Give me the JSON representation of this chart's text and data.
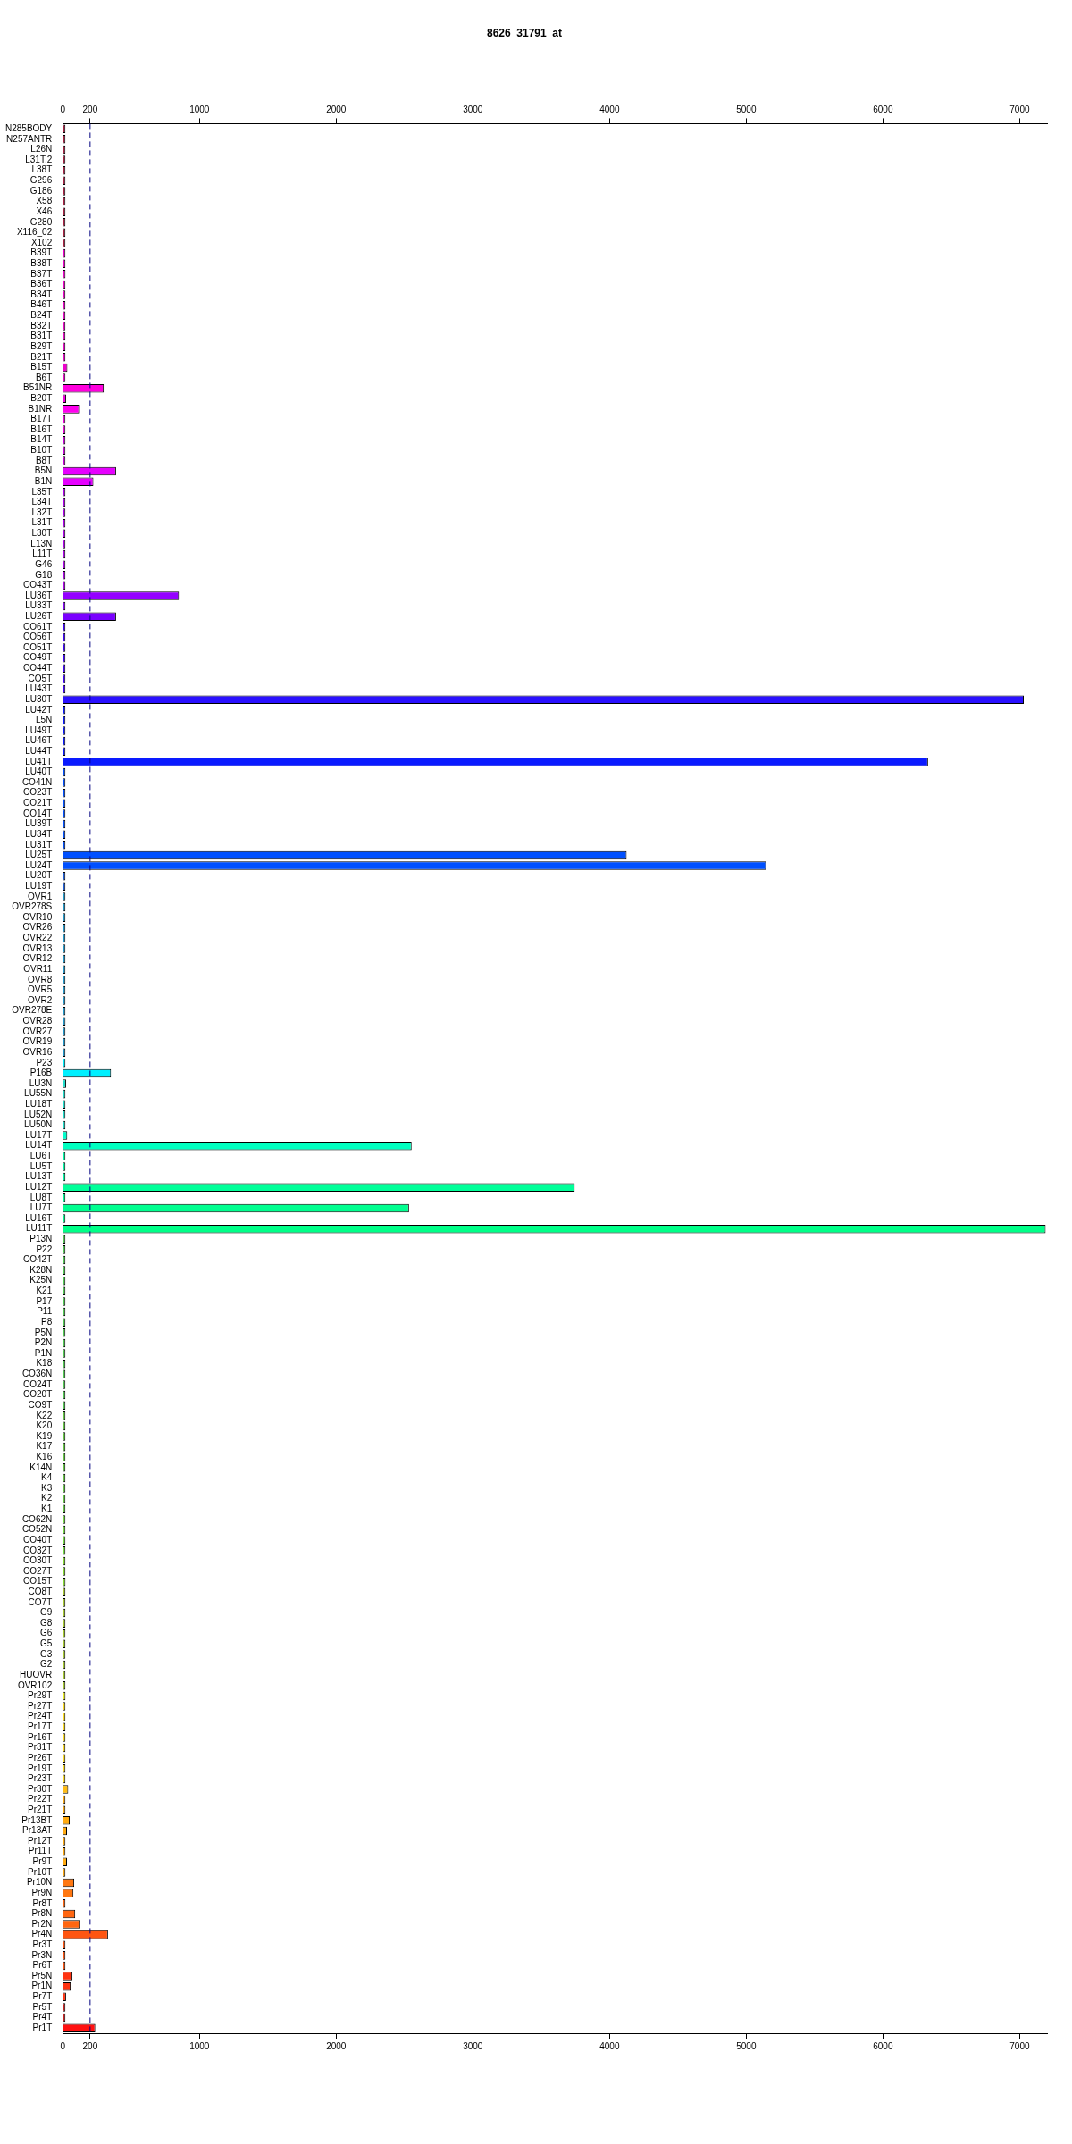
{
  "chart_data": {
    "type": "bar",
    "orientation": "horizontal",
    "title": "8626_31791_at",
    "categories": [
      "N285BODY",
      "N257ANTR",
      "L26N",
      "L31T.2",
      "L38T",
      "G296",
      "G186",
      "X58",
      "X46",
      "G280",
      "X116_02",
      "X102",
      "B39T",
      "B38T",
      "B37T",
      "B36T",
      "B34T",
      "B46T",
      "B24T",
      "B32T",
      "B31T",
      "B29T",
      "B21T",
      "B15T",
      "B6T",
      "B51NR",
      "B20T",
      "B1NR",
      "B17T",
      "B16T",
      "B14T",
      "B10T",
      "B8T",
      "B5N",
      "B1N",
      "L35T",
      "L34T",
      "L32T",
      "L31T",
      "L30T",
      "L13N",
      "L11T",
      "G46",
      "G18",
      "CO43T",
      "LU36T",
      "LU33T",
      "LU26T",
      "CO61T",
      "CO56T",
      "CO51T",
      "CO49T",
      "CO44T",
      "CO5T",
      "LU43T",
      "LU30T",
      "LU42T",
      "L5N",
      "LU49T",
      "LU46T",
      "LU44T",
      "LU41T",
      "LU40T",
      "CO41N",
      "CO23T",
      "CO21T",
      "CO14T",
      "LU39T",
      "LU34T",
      "LU31T",
      "LU25T",
      "LU24T",
      "LU20T",
      "LU19T",
      "OVR1",
      "OVR278S",
      "OVR10",
      "OVR26",
      "OVR22",
      "OVR13",
      "OVR12",
      "OVR11",
      "OVR8",
      "OVR5",
      "OVR2",
      "OVR278E",
      "OVR28",
      "OVR27",
      "OVR19",
      "OVR16",
      "P23",
      "P16B",
      "LU3N",
      "LU55N",
      "LU18T",
      "LU52N",
      "LU50N",
      "LU17T",
      "LU14T",
      "LU6T",
      "LU5T",
      "LU13T",
      "LU12T",
      "LU8T",
      "LU7T",
      "LU16T",
      "LU11T",
      "P13N",
      "P22",
      "CO42T",
      "K28N",
      "K25N",
      "K21",
      "P17",
      "P11",
      "P8",
      "P5N",
      "P2N",
      "P1N",
      "K18",
      "CO36N",
      "CO24T",
      "CO20T",
      "CO9T",
      "K22",
      "K20",
      "K19",
      "K17",
      "K16",
      "K14N",
      "K4",
      "K3",
      "K2",
      "K1",
      "CO62N",
      "CO52N",
      "CO40T",
      "CO32T",
      "CO30T",
      "CO27T",
      "CO15T",
      "CO8T",
      "CO7T",
      "G9",
      "G8",
      "G6",
      "G5",
      "G3",
      "G2",
      "HUOVR",
      "OVR102",
      "Pr29T",
      "Pr27T",
      "Pr24T",
      "Pr17T",
      "Pr16T",
      "Pr31T",
      "Pr26T",
      "Pr19T",
      "Pr23T",
      "Pr30T",
      "Pr22T",
      "Pr21T",
      "Pr13BT",
      "Pr13AT",
      "Pr12T",
      "Pr11T",
      "Pr9T",
      "Pr10T",
      "Pr10N",
      "Pr9N",
      "Pr8T",
      "Pr8N",
      "Pr2N",
      "Pr4N",
      "Pr3T",
      "Pr3N",
      "Pr6T",
      "Pr5N",
      "Pr1N",
      "Pr7T",
      "Pr5T",
      "Pr4T",
      "Pr1T"
    ],
    "values": [
      5,
      13,
      13,
      5,
      13,
      5,
      5,
      5,
      5,
      5,
      5,
      13,
      5,
      13,
      20,
      5,
      5,
      5,
      5,
      13,
      13,
      5,
      13,
      34,
      13,
      300,
      25,
      120,
      5,
      5,
      13,
      13,
      5,
      390,
      224,
      18,
      13,
      13,
      13,
      13,
      5,
      13,
      5,
      5,
      5,
      850,
      13,
      390,
      5,
      5,
      5,
      5,
      5,
      13,
      13,
      7030,
      5,
      5,
      5,
      5,
      5,
      6330,
      5,
      5,
      5,
      5,
      5,
      5,
      5,
      13,
      4125,
      5145,
      5,
      18,
      5,
      5,
      13,
      13,
      5,
      5,
      5,
      5,
      5,
      5,
      5,
      5,
      20,
      5,
      5,
      5,
      13,
      353,
      25,
      13,
      13,
      5,
      5,
      33,
      2552,
      13,
      13,
      13,
      3745,
      5,
      2533,
      5,
      7190,
      5,
      5,
      13,
      13,
      13,
      5,
      5,
      5,
      5,
      5,
      5,
      5,
      5,
      13,
      5,
      13,
      5,
      5,
      5,
      5,
      13,
      5,
      13,
      13,
      5,
      5,
      5,
      13,
      13,
      5,
      5,
      13,
      13,
      20,
      5,
      5,
      5,
      5,
      5,
      5,
      5,
      5,
      5,
      5,
      20,
      5,
      5,
      5,
      5,
      5,
      5,
      5,
      5,
      40,
      5,
      18,
      51,
      31,
      18,
      5,
      31,
      5,
      84,
      78,
      18,
      91,
      124,
      331,
      5,
      5,
      5,
      71,
      58,
      24,
      13,
      18,
      238
    ],
    "colors": [
      "#aa2244",
      "#aa2244",
      "#aa2244",
      "#aa2244",
      "#aa2244",
      "#aa2244",
      "#aa2244",
      "#aa2244",
      "#aa2244",
      "#aa2244",
      "#aa2244",
      "#aa2244",
      "#ee00cc",
      "#ee00cc",
      "#ee00cc",
      "#ee00cc",
      "#ee00cc",
      "#ee00cc",
      "#ee00cc",
      "#ee00cc",
      "#ee00cc",
      "#ee00cc",
      "#ee00cc",
      "#ee00cc",
      "#ee00cc",
      "#ff00dd",
      "#ee00dd",
      "#ff00ee",
      "#ee00dd",
      "#ee00dd",
      "#cc00dd",
      "#cc00dd",
      "#cc00dd",
      "#e600ff",
      "#e600ff",
      "#b000ee",
      "#b000ee",
      "#b000ee",
      "#b000ee",
      "#b000ee",
      "#b000ee",
      "#b000ee",
      "#b000ee",
      "#b000ee",
      "#b000ee",
      "#9400ff",
      "#8800ff",
      "#7a00ff",
      "#4000ff",
      "#4000ff",
      "#4000ff",
      "#4000ff",
      "#4000ff",
      "#4000ff",
      "#4000ff",
      "#2a10ff",
      "#0a1aff",
      "#0a1aff",
      "#0a1aff",
      "#0a1aff",
      "#0a1aff",
      "#0a1aff",
      "#0050ff",
      "#0050ff",
      "#0050ff",
      "#0050ff",
      "#0050ff",
      "#0050ff",
      "#0050ff",
      "#0050ff",
      "#0050ff",
      "#0050ff",
      "#1f60dd",
      "#1f60dd",
      "#2299cc",
      "#2299cc",
      "#2299cc",
      "#2299cc",
      "#2299cc",
      "#2299cc",
      "#2299cc",
      "#2299cc",
      "#2299cc",
      "#2299cc",
      "#2299cc",
      "#2299cc",
      "#2299cc",
      "#2299cc",
      "#2299cc",
      "#2299cc",
      "#00f0ff",
      "#00f0ff",
      "#22ddcc",
      "#22ddcc",
      "#22ddcc",
      "#22ddcc",
      "#22ddcc",
      "#00ffcc",
      "#00ffc0",
      "#00ffaa",
      "#00ffaa",
      "#00ffaa",
      "#00ff99",
      "#00ff99",
      "#00ff90",
      "#00ff90",
      "#00ff88",
      "#55cc55",
      "#55cc55",
      "#55cc55",
      "#55cc55",
      "#55cc55",
      "#55cc55",
      "#55cc55",
      "#55cc55",
      "#55cc55",
      "#55cc55",
      "#55cc55",
      "#55cc55",
      "#55cc55",
      "#55cc55",
      "#55cc55",
      "#55cc55",
      "#55cc55",
      "#66cc44",
      "#66cc44",
      "#66cc44",
      "#66cc44",
      "#66cc44",
      "#66cc44",
      "#66cc44",
      "#66cc44",
      "#66cc44",
      "#66cc44",
      "#77dd44",
      "#77dd44",
      "#77dd44",
      "#77dd44",
      "#88dd33",
      "#88dd33",
      "#88dd33",
      "#aacc33",
      "#aacc33",
      "#aacc33",
      "#aacc33",
      "#aacc33",
      "#aacc33",
      "#aacc33",
      "#aacc33",
      "#aacc33",
      "#aacc33",
      "#eeee22",
      "#ffdd22",
      "#ffdd22",
      "#ffdd22",
      "#ffdd22",
      "#ffdd22",
      "#ffdd22",
      "#ffdd22",
      "#ffdd22",
      "#ffbb11",
      "#ffaa11",
      "#ffaa11",
      "#ffaa11",
      "#ffaa11",
      "#ffaa11",
      "#ffaa11",
      "#ffaa11",
      "#ffaa11",
      "#ff7711",
      "#ff7711",
      "#ff6611",
      "#ff6611",
      "#ff6611",
      "#ff5511",
      "#ff5511",
      "#ff5511",
      "#ff5511",
      "#ff3311",
      "#ff3311",
      "#ff3311",
      "#cc2222",
      "#cc2222",
      "#ff1111"
    ],
    "xlim": [
      0,
      7200
    ],
    "xticks": [
      0,
      200,
      1000,
      2000,
      3000,
      4000,
      5000,
      6000,
      7000
    ],
    "x2lim": [
      0,
      7200
    ],
    "x2ticks": [
      0,
      200,
      1000,
      2000,
      3000,
      4000,
      5000,
      6000,
      7000
    ],
    "ref_lines": [
      {
        "axis": "x",
        "value": 200,
        "color": "#000080",
        "line_style": "dashed"
      }
    ],
    "grid": false,
    "legend": false
  }
}
